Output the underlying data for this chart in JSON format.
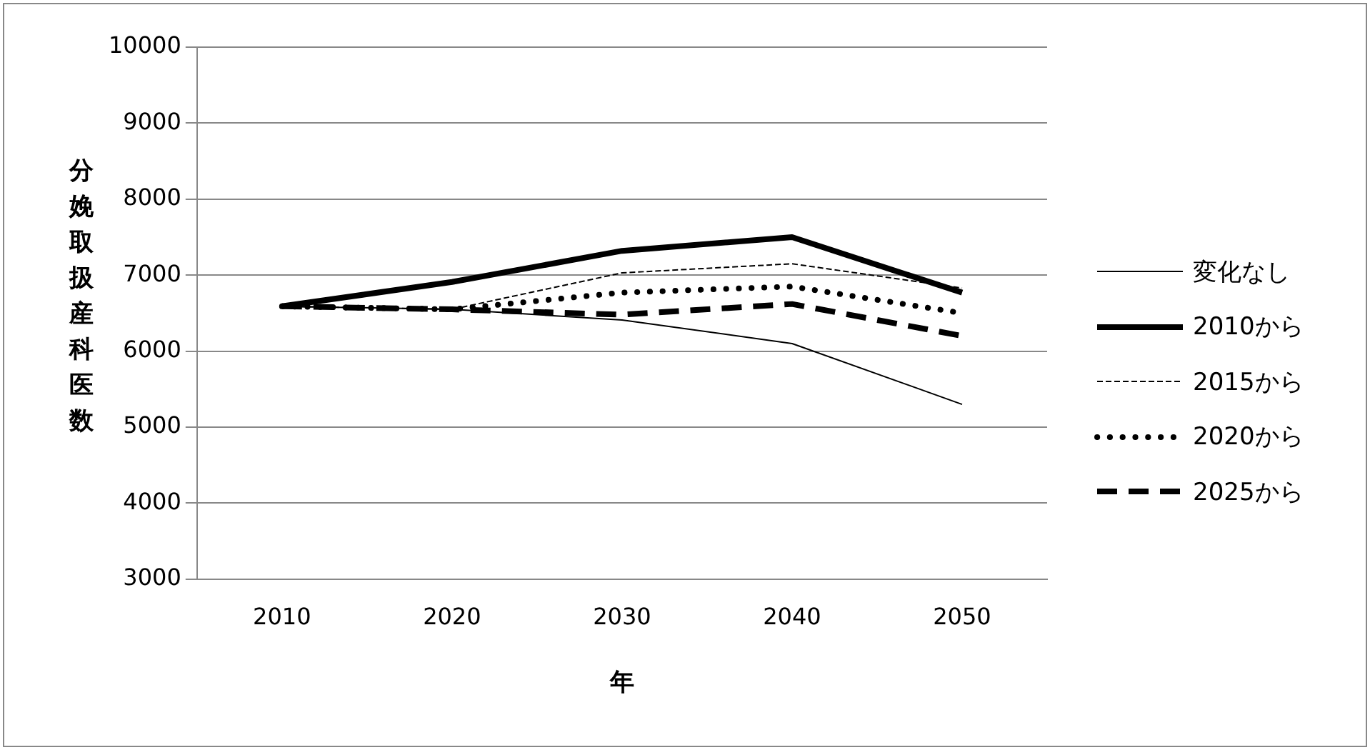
{
  "chart_data": {
    "type": "line",
    "xlabel": "年",
    "ylabel": "分娩取扱産科医数",
    "categories": [
      "2010",
      "2020",
      "2030",
      "2040",
      "2050"
    ],
    "ylim": [
      3000,
      10000
    ],
    "yticks": [
      3000,
      4000,
      5000,
      6000,
      7000,
      8000,
      9000,
      10000
    ],
    "grid": "y",
    "legend": "right",
    "marker": "none",
    "series": [
      {
        "name": "変化なし",
        "color": "#000000",
        "line_style": "solid",
        "values": [
          6590,
          6550,
          6410,
          6100,
          5300
        ]
      },
      {
        "name": "2010から",
        "color": "#000000",
        "line_style": "solid",
        "values": [
          6590,
          6910,
          7320,
          7500,
          6770
        ]
      },
      {
        "name": "2015から",
        "color": "#000000",
        "line_style": "dashed",
        "values": [
          6590,
          6550,
          7030,
          7150,
          6830
        ]
      },
      {
        "name": "2020から",
        "color": "#000000",
        "line_style": "dotted",
        "values": [
          6590,
          6550,
          6770,
          6850,
          6500
        ]
      },
      {
        "name": "2025から",
        "color": "#000000",
        "line_style": "dashed",
        "values": [
          6590,
          6550,
          6480,
          6620,
          6200
        ]
      }
    ]
  }
}
